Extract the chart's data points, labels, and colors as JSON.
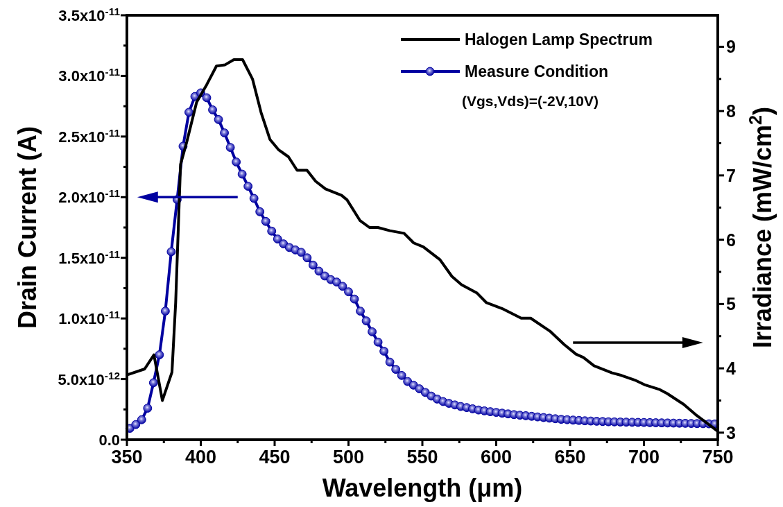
{
  "chart_data": {
    "type": "line",
    "xlabel": "Wavelength (μm)",
    "ylabel": "Drain Current (A)",
    "y2label": "Irradiance (mW/cm$^{2}$)",
    "xlim": [
      350,
      750
    ],
    "xticks": [
      350,
      {
        "value": 375,
        "label": null
      },
      400,
      {
        "value": 425,
        "label": null
      },
      450,
      {
        "value": 475,
        "label": null
      },
      500,
      {
        "value": 525,
        "label": null
      },
      550,
      {
        "value": 575,
        "label": null
      },
      600,
      {
        "value": 625,
        "label": null
      },
      650,
      {
        "value": 675,
        "label": null
      },
      700,
      {
        "value": 725,
        "label": null
      },
      750
    ],
    "ylim": [
      0,
      3.5e-11
    ],
    "yticks": [
      {
        "value": 0,
        "label": "0.0"
      },
      {
        "value": 2.5e-12,
        "label": null
      },
      {
        "value": 5e-12,
        "label": "5.0x10$^{-12}$"
      },
      {
        "value": 7.5e-12,
        "label": null
      },
      {
        "value": 1e-11,
        "label": "1.0x10$^{-11}$"
      },
      {
        "value": 1.25e-11,
        "label": null
      },
      {
        "value": 1.5e-11,
        "label": "1.5x10$^{-11}$"
      },
      {
        "value": 1.75e-11,
        "label": null
      },
      {
        "value": 2e-11,
        "label": "2.0x10$^{-11}$"
      },
      {
        "value": 2.25e-11,
        "label": null
      },
      {
        "value": 2.5e-11,
        "label": "2.5x10$^{-11}$"
      },
      {
        "value": 2.75e-11,
        "label": null
      },
      {
        "value": 3e-11,
        "label": "3.0x10$^{-11}$"
      },
      {
        "value": 3.25e-11,
        "label": null
      },
      {
        "value": 3.5e-11,
        "label": "3.5x10$^{-11}$"
      }
    ],
    "y2lim": [
      2.89,
      9.49
    ],
    "y2ticks": [
      3,
      {
        "value": 3.5,
        "label": null
      },
      4,
      {
        "value": 4.5,
        "label": null
      },
      5,
      {
        "value": 5.5,
        "label": null
      },
      6,
      {
        "value": 6.5,
        "label": null
      },
      7,
      {
        "value": 7.5,
        "label": null
      },
      8,
      {
        "value": 8.5,
        "label": null
      },
      9
    ],
    "legend": "top right",
    "grid": false,
    "annotations": [
      "(Vgs,Vds)=(-2V,10V)"
    ],
    "series": [
      {
        "name": "Halogen Lamp Spectrum",
        "color": "#000000",
        "axis": "y2",
        "marker": "none",
        "x": [
          350.3,
          362,
          368.3,
          374,
          380.5,
          383,
          386.3,
          390.5,
          397.2,
          404,
          410.6,
          416.5,
          422.4,
          428.3,
          435,
          440.8,
          446.8,
          452.6,
          459.3,
          465.2,
          471.9,
          477.7,
          484.4,
          495.3,
          499,
          507.7,
          514.2,
          519.9,
          528,
          537.6,
          544.1,
          550.6,
          561.9,
          570,
          576.5,
          587,
          593.4,
          603.9,
          616.9,
          623.3,
          636.3,
          646,
          654,
          659,
          666.2,
          678.4,
          684.8,
          694.6,
          701,
          710.7,
          715.6,
          726.9,
          735,
          750
        ],
        "values": [
          3.9,
          3.99,
          4.21,
          3.5,
          3.94,
          5.02,
          7.17,
          7.52,
          8.14,
          8.41,
          8.7,
          8.72,
          8.8,
          8.8,
          8.5,
          7.98,
          7.56,
          7.4,
          7.29,
          7.08,
          7.08,
          6.91,
          6.79,
          6.69,
          6.62,
          6.3,
          6.19,
          6.19,
          6.14,
          6.1,
          5.95,
          5.89,
          5.69,
          5.43,
          5.3,
          5.17,
          5.02,
          4.93,
          4.78,
          4.78,
          4.58,
          4.37,
          4.22,
          4.17,
          4.04,
          3.93,
          3.89,
          3.81,
          3.74,
          3.67,
          3.61,
          3.44,
          3.28,
          3.02
        ]
      },
      {
        "name": "Measure Condition",
        "color": "#0000a0",
        "marker": "circle",
        "x": [
          352,
          356,
          360,
          364,
          368,
          372,
          376,
          380,
          384,
          388,
          392,
          396,
          400,
          404,
          408,
          412,
          416,
          420,
          424,
          428,
          432,
          436,
          440,
          444,
          448,
          452,
          456,
          460,
          464,
          468,
          472,
          476,
          480,
          484,
          488,
          492,
          496,
          500,
          504,
          508,
          512,
          516,
          520,
          524,
          528,
          532,
          536,
          540,
          544,
          548,
          552,
          556,
          560,
          564,
          568,
          572,
          576,
          580,
          584,
          588,
          592,
          596,
          600,
          604,
          608,
          612,
          616,
          620,
          624,
          628,
          632,
          636,
          640,
          644,
          648,
          652,
          656,
          660,
          664,
          668,
          672,
          676,
          680,
          684,
          688,
          692,
          696,
          700,
          704,
          708,
          712,
          716,
          720,
          724,
          728,
          732,
          736,
          740,
          744,
          748
        ],
        "values": [
          9.4e-13,
          1.25e-12,
          1.65e-12,
          2.6e-12,
          4.7e-12,
          7e-12,
          1.06e-11,
          1.55e-11,
          1.98e-11,
          2.42e-11,
          2.7e-11,
          2.83e-11,
          2.86e-11,
          2.82e-11,
          2.72e-11,
          2.64e-11,
          2.53e-11,
          2.41e-11,
          2.29e-11,
          2.19e-11,
          2.09e-11,
          1.99e-11,
          1.88e-11,
          1.8e-11,
          1.72e-11,
          1.655e-11,
          1.615e-11,
          1.585e-11,
          1.565e-11,
          1.545e-11,
          1.5e-11,
          1.44e-11,
          1.39e-11,
          1.35e-11,
          1.32e-11,
          1.3e-11,
          1.265e-11,
          1.22e-11,
          1.16e-11,
          1.06e-11,
          9.8e-12,
          8.9e-12,
          8.05e-12,
          7.3e-12,
          6.4e-12,
          5.8e-12,
          5.3e-12,
          4.8e-12,
          4.5e-12,
          4.2e-12,
          3.9e-12,
          3.6e-12,
          3.35e-12,
          3.15e-12,
          3e-12,
          2.87e-12,
          2.74e-12,
          2.65e-12,
          2.55e-12,
          2.45e-12,
          2.38e-12,
          2.31e-12,
          2.25e-12,
          2.19e-12,
          2.13e-12,
          2.07e-12,
          2.02e-12,
          1.98e-12,
          1.93e-12,
          1.88e-12,
          1.83e-12,
          1.78e-12,
          1.73e-12,
          1.68e-12,
          1.65e-12,
          1.62e-12,
          1.59e-12,
          1.56e-12,
          1.54e-12,
          1.52e-12,
          1.5e-12,
          1.48e-12,
          1.47e-12,
          1.46e-12,
          1.45e-12,
          1.44e-12,
          1.43e-12,
          1.42e-12,
          1.41e-12,
          1.4e-12,
          1.39e-12,
          1.38e-12,
          1.37e-12,
          1.36e-12,
          1.35e-12,
          1.34e-12,
          1.33e-12,
          1.32e-12,
          1.31e-12,
          1.3e-12
        ]
      }
    ]
  }
}
